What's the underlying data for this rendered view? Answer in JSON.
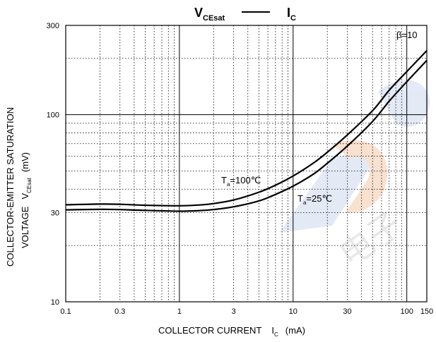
{
  "chart_data": {
    "type": "line",
    "title": {
      "lhs_main": "V",
      "lhs_sub": "CEsat",
      "separator": "—",
      "rhs_main": "I",
      "rhs_sub": "C"
    },
    "xlabel": {
      "text": "COLLECTOR CURRENT",
      "symbol": "I",
      "symbol_sub": "C",
      "unit": "(mA)"
    },
    "ylabel": {
      "line1": "COLLECTOR-EMITTER SATURATION",
      "line2_text": "VOLTAGE",
      "line2_symbol": "V",
      "line2_sub": "CEsat",
      "line2_unit": "(mV)"
    },
    "x_scale": "log",
    "y_scale": "log",
    "xlim": [
      0.1,
      150
    ],
    "ylim": [
      10,
      300
    ],
    "x_ticks": [
      {
        "value": 0.1,
        "label": "0.1"
      },
      {
        "value": 0.3,
        "label": "0.3"
      },
      {
        "value": 1,
        "label": "1"
      },
      {
        "value": 3,
        "label": "3"
      },
      {
        "value": 10,
        "label": "10"
      },
      {
        "value": 30,
        "label": "30"
      },
      {
        "value": 100,
        "label": "100"
      },
      {
        "value": 150,
        "label": "150"
      }
    ],
    "y_ticks": [
      {
        "value": 10,
        "label": "10"
      },
      {
        "value": 30,
        "label": "30"
      },
      {
        "value": 100,
        "label": "100"
      },
      {
        "value": 300,
        "label": "300"
      }
    ],
    "grid": true,
    "condition_label": "β=10",
    "series": [
      {
        "name_main": "T",
        "name_sub": "a",
        "name_value": "=100℃",
        "x": [
          0.1,
          0.2,
          0.3,
          0.5,
          1,
          1.5,
          2,
          3,
          5,
          7,
          10,
          15,
          20,
          30,
          50,
          70,
          100,
          150
        ],
        "y": [
          33,
          33.3,
          33.2,
          32.8,
          32.6,
          32.9,
          33.5,
          35,
          38.5,
          42,
          47,
          55,
          63,
          78,
          105,
          135,
          170,
          220
        ]
      },
      {
        "name_main": "T",
        "name_sub": "a",
        "name_value": "=25℃",
        "x": [
          0.1,
          0.2,
          0.3,
          0.5,
          1,
          1.5,
          2,
          3,
          5,
          7,
          10,
          15,
          20,
          30,
          50,
          70,
          100,
          150
        ],
        "y": [
          31,
          31.2,
          31.1,
          30.8,
          30.5,
          30.7,
          31.1,
          32.2,
          34.6,
          37.5,
          41.5,
          48,
          55,
          68,
          92,
          118,
          150,
          195
        ]
      }
    ],
    "watermark_text": "电子"
  }
}
